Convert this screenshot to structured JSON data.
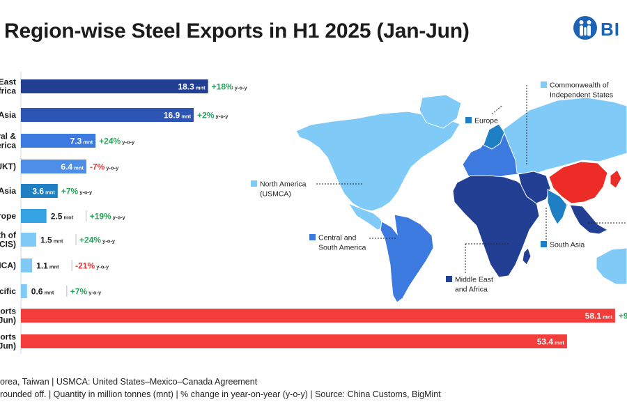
{
  "header": {
    "title": "Region-wise Steel Exports in H1 2025 (Jan-Jun)",
    "logo_text": "BI"
  },
  "colors": {
    "dark_navy": "#233f94",
    "navy": "#2d55b3",
    "blue": "#3c7ae0",
    "mid_blue": "#4f8ee6",
    "strong_blue": "#1f7fc4",
    "sky": "#35a3e3",
    "light_sky": "#7fcaf6",
    "total": "#f23d3a",
    "china": "#ee2c27",
    "positive": "#27a35a",
    "negative": "#e23b3b"
  },
  "chart_data": {
    "type": "bar",
    "orientation": "horizontal",
    "unit": "mnt",
    "change_suffix": "y-o-y",
    "series": [
      {
        "label_lines": [
          "East",
          "frica"
        ],
        "value": 18.3,
        "value_text": "18.3",
        "change": "+18%",
        "direction": "up",
        "color": "#233f94",
        "value_inside": true
      },
      {
        "label_lines": [
          "Asia"
        ],
        "value": 16.9,
        "value_text": "16.9",
        "change": "+2%",
        "direction": "up",
        "color": "#2d55b3",
        "value_inside": true
      },
      {
        "label_lines": [
          "ral &",
          "erica"
        ],
        "value": 7.3,
        "value_text": "7.3",
        "change": "+24%",
        "direction": "up",
        "color": "#3c7ae0",
        "value_inside": true
      },
      {
        "label_lines": [
          "UKT)"
        ],
        "value": 6.4,
        "value_text": "6.4",
        "change": "-7%",
        "direction": "down",
        "color": "#4f8ee6",
        "value_inside": true
      },
      {
        "label_lines": [
          "Asia"
        ],
        "value": 3.6,
        "value_text": "3.6",
        "change": "+7%",
        "direction": "up",
        "color": "#1f7fc4",
        "value_inside": true
      },
      {
        "label_lines": [
          "rope"
        ],
        "value": 2.5,
        "value_text": "2.5",
        "change": "+19%",
        "direction": "up",
        "color": "#35a3e3",
        "value_inside": false
      },
      {
        "label_lines": [
          "th of",
          "CIS)"
        ],
        "value": 1.5,
        "value_text": "1.5",
        "change": "+24%",
        "direction": "up",
        "color": "#7fcaf6",
        "value_inside": false
      },
      {
        "label_lines": [
          "MCA)"
        ],
        "value": 1.1,
        "value_text": "1.1",
        "change": "-21%",
        "direction": "down",
        "color": "#7fcaf6",
        "value_inside": false
      },
      {
        "label_lines": [
          "cific"
        ],
        "value": 0.6,
        "value_text": "0.6",
        "change": "+7%",
        "direction": "up",
        "color": "#7fcaf6",
        "value_inside": false
      },
      {
        "label_lines": [
          "oorts",
          "Jun)"
        ],
        "value": 58.1,
        "value_text": "58.1",
        "change": "+9",
        "direction": "up",
        "color": "#f23d3a",
        "value_inside": true
      },
      {
        "label_lines": [
          "oorts",
          "Jun)"
        ],
        "value": 53.4,
        "value_text": "53.4",
        "change": "",
        "direction": "none",
        "color": "#f23d3a",
        "value_inside": true
      }
    ],
    "map_legend": [
      {
        "lines": [
          "Commonwealth of",
          "Independent States"
        ],
        "color": "#7fcaf6"
      },
      {
        "lines": [
          "Europe"
        ],
        "color": "#1f7fc4"
      },
      {
        "lines": [
          "North America",
          "(USMCA)"
        ],
        "color": "#7fcaf6"
      },
      {
        "lines": [
          "Central and",
          "South America"
        ],
        "color": "#3c7ae0"
      },
      {
        "lines": [
          "South Asia"
        ],
        "color": "#1f7fc4"
      },
      {
        "lines": [
          "Middle East",
          "and Africa"
        ],
        "color": "#233f94"
      }
    ]
  },
  "footnotes": [
    "orea, Taiwan | USMCA: United States–Mexico–Canada Agreement",
    "rounded off. | Quantity in million tonnes (mnt) | % change in year-on-year (y-o-y) | Source: China Customs, BigMint"
  ]
}
